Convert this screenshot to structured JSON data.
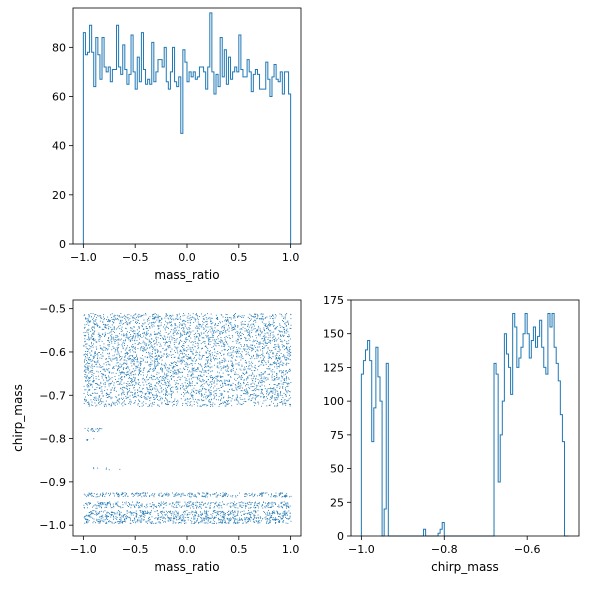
{
  "chart_data": [
    {
      "type": "histogram",
      "xlabel": "mass_ratio",
      "ylabel": "",
      "xlim": [
        -1.1,
        1.1
      ],
      "ylim": [
        0,
        96
      ],
      "xticks": [
        -1.0,
        -0.5,
        0.0,
        0.5,
        1.0
      ],
      "xtick_labels": [
        "−1.0",
        "−0.5",
        "0.0",
        "0.5",
        "1.0"
      ],
      "yticks": [
        0,
        20,
        40,
        60,
        80
      ],
      "ytick_labels": [
        "0",
        "20",
        "40",
        "60",
        "80"
      ],
      "bin_range": [
        -1.0,
        1.0
      ],
      "counts": [
        86,
        77,
        78,
        89,
        78,
        64,
        84,
        77,
        67,
        84,
        72,
        70,
        72,
        66,
        71,
        71,
        89,
        72,
        69,
        81,
        71,
        65,
        69,
        85,
        70,
        63,
        76,
        66,
        86,
        71,
        65,
        67,
        65,
        82,
        66,
        70,
        75,
        75,
        72,
        80,
        66,
        63,
        70,
        80,
        66,
        64,
        68,
        45,
        79,
        74,
        66,
        70,
        68,
        70,
        67,
        68,
        72,
        72,
        70,
        63,
        72,
        94,
        70,
        61,
        69,
        64,
        84,
        68,
        79,
        65,
        76,
        67,
        70,
        72,
        70,
        85,
        71,
        68,
        68,
        75,
        70,
        62,
        69,
        71,
        69,
        63,
        63,
        63,
        74,
        67,
        60,
        68,
        73,
        67,
        66,
        70,
        61,
        70,
        70,
        61
      ]
    },
    {
      "type": "scatter",
      "xlabel": "mass_ratio",
      "ylabel": "chirp_mass",
      "xlim": [
        -1.1,
        1.1
      ],
      "ylim": [
        -1.025,
        -0.48
      ],
      "xticks": [
        -1.0,
        -0.5,
        0.0,
        0.5,
        1.0
      ],
      "xtick_labels": [
        "−1.0",
        "−0.5",
        "0.0",
        "0.5",
        "1.0"
      ],
      "yticks": [
        -1.0,
        -0.9,
        -0.8,
        -0.7,
        -0.6,
        -0.5
      ],
      "ytick_labels": [
        "−1.0",
        "−0.9",
        "−0.8",
        "−0.7",
        "−0.6",
        "−0.5"
      ],
      "bands": [
        {
          "y_range": [
            -0.995,
            -0.965
          ],
          "x_range": [
            -1.0,
            1.0
          ],
          "count": 900
        },
        {
          "y_range": [
            -0.96,
            -0.945
          ],
          "x_range": [
            -1.0,
            1.0
          ],
          "count": 380
        },
        {
          "y_range": [
            -0.934,
            -0.924
          ],
          "x_range": [
            -1.0,
            1.0
          ],
          "count": 300
        },
        {
          "y_range": [
            -0.872,
            -0.866
          ],
          "x_range": [
            -0.95,
            -0.6
          ],
          "count": 7
        },
        {
          "y_range": [
            -0.805,
            -0.795
          ],
          "x_range": [
            -0.98,
            -0.9
          ],
          "count": 5
        },
        {
          "y_range": [
            -0.783,
            -0.775
          ],
          "x_range": [
            -1.0,
            -0.78
          ],
          "count": 20
        },
        {
          "y_range": [
            -0.725,
            -0.7
          ],
          "x_range": [
            -1.0,
            1.0
          ],
          "count": 420
        },
        {
          "y_range": [
            -0.7,
            -0.51
          ],
          "x_range": [
            -1.0,
            1.0
          ],
          "count": 3600
        }
      ]
    },
    {
      "type": "histogram",
      "xlabel": "chirp_mass",
      "ylabel": "",
      "xlim": [
        -1.025,
        -0.475
      ],
      "ylim": [
        0,
        175
      ],
      "xticks": [
        -1.0,
        -0.8,
        -0.6
      ],
      "xtick_labels": [
        "−1.0",
        "−0.8",
        "−0.6"
      ],
      "yticks": [
        0,
        25,
        50,
        75,
        100,
        125,
        150,
        175
      ],
      "ytick_labels": [
        "0",
        "25",
        "50",
        "75",
        "100",
        "125",
        "150",
        "175"
      ],
      "bin_range": [
        -1.0,
        -0.5
      ],
      "counts": [
        120,
        130,
        138,
        145,
        130,
        70,
        95,
        140,
        118,
        100,
        0,
        20,
        128,
        0,
        0,
        0,
        0,
        0,
        0,
        0,
        0,
        0,
        0,
        0,
        0,
        0,
        0,
        0,
        0,
        0,
        5,
        0,
        0,
        0,
        0,
        0,
        0,
        2,
        5,
        10,
        0,
        0,
        0,
        0,
        0,
        0,
        0,
        0,
        0,
        0,
        0,
        0,
        0,
        0,
        0,
        0,
        0,
        0,
        0,
        0,
        0,
        0,
        0,
        0,
        128,
        120,
        40,
        75,
        100,
        150,
        135,
        125,
        105,
        165,
        155,
        125,
        132,
        140,
        150,
        165,
        150,
        132,
        145,
        155,
        140,
        148,
        160,
        140,
        125,
        120,
        165,
        155,
        165,
        140,
        128,
        115,
        90,
        70,
        0,
        0
      ]
    }
  ]
}
